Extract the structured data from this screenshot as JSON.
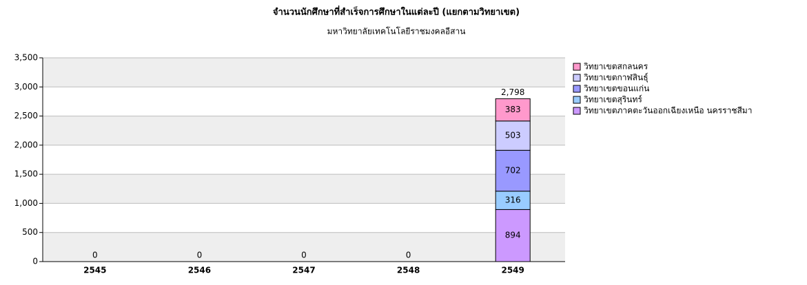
{
  "chart_data": {
    "type": "stacked_bar",
    "title": "จำนวนนักศึกษาที่สำเร็จการศึกษาในแต่ละปี (แยกตามวิทยาเขต)",
    "subtitle": "มหาวิทยาลัยเทคโนโลยีราชมงคลอีสาน",
    "categories": [
      "2545",
      "2546",
      "2547",
      "2548",
      "2549"
    ],
    "series": [
      {
        "name": "วิทยาเขตภาคตะวันออกเฉียงเหนือ นครราชสีมา",
        "color": "#cc99ff",
        "values": [
          0,
          0,
          0,
          0,
          894
        ]
      },
      {
        "name": "วิทยาเขตสุรินทร์",
        "color": "#99ccff",
        "values": [
          0,
          0,
          0,
          0,
          316
        ]
      },
      {
        "name": "วิทยาเขตขอนแก่น",
        "color": "#9999ff",
        "values": [
          0,
          0,
          0,
          0,
          702
        ]
      },
      {
        "name": "วิทยาเขตกาฬสินธุ์",
        "color": "#ccccff",
        "values": [
          0,
          0,
          0,
          0,
          503
        ]
      },
      {
        "name": "วิทยาเขตสกลนคร",
        "color": "#ff99cc",
        "values": [
          0,
          0,
          0,
          0,
          383
        ]
      }
    ],
    "totals": {
      "values": [
        0,
        0,
        0,
        0,
        2798
      ],
      "value_labels": [
        "0",
        "0",
        "0",
        "0",
        "2,798"
      ]
    },
    "ylim": [
      0,
      3500
    ],
    "yticks": [
      0,
      500,
      {
        "value": 1000,
        "label": "1,000"
      },
      {
        "value": 1500,
        "label": "1,500"
      },
      {
        "value": 2000,
        "label": "2,000"
      },
      {
        "value": 2500,
        "label": "2,500"
      },
      {
        "value": 3000,
        "label": "3,000"
      },
      {
        "value": 3500,
        "label": "3,500"
      }
    ],
    "grid": true,
    "legend": "right"
  }
}
